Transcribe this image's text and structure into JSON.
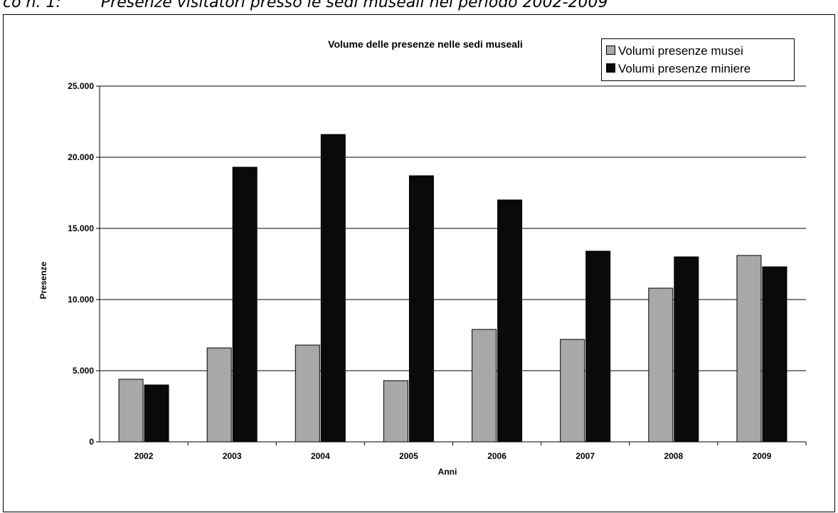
{
  "caption": {
    "prefix": "co n. 1:",
    "text": "Presenze visitatori presso le sedi museali nel periodo 2002-2009"
  },
  "colors": {
    "musei": "#a8a8a8",
    "miniere": "#0a0a0a"
  },
  "chart_data": {
    "type": "bar",
    "title": "Volume delle presenze nelle sedi museali",
    "xlabel": "Anni",
    "ylabel": "Presenze",
    "categories": [
      "2002",
      "2003",
      "2004",
      "2005",
      "2006",
      "2007",
      "2008",
      "2009"
    ],
    "series": [
      {
        "name": "Volumi presenze musei",
        "values": [
          4400,
          6600,
          6800,
          4300,
          7900,
          7200,
          10800,
          13100
        ]
      },
      {
        "name": "Volumi presenze miniere",
        "values": [
          4000,
          19300,
          21600,
          18700,
          17000,
          13400,
          13000,
          12300
        ]
      }
    ],
    "ylim": [
      0,
      25000
    ],
    "yticks": [
      "0",
      "5.000",
      "10.000",
      "15.000",
      "20.000",
      "25.000"
    ],
    "grid": true,
    "legend": "top-right"
  }
}
